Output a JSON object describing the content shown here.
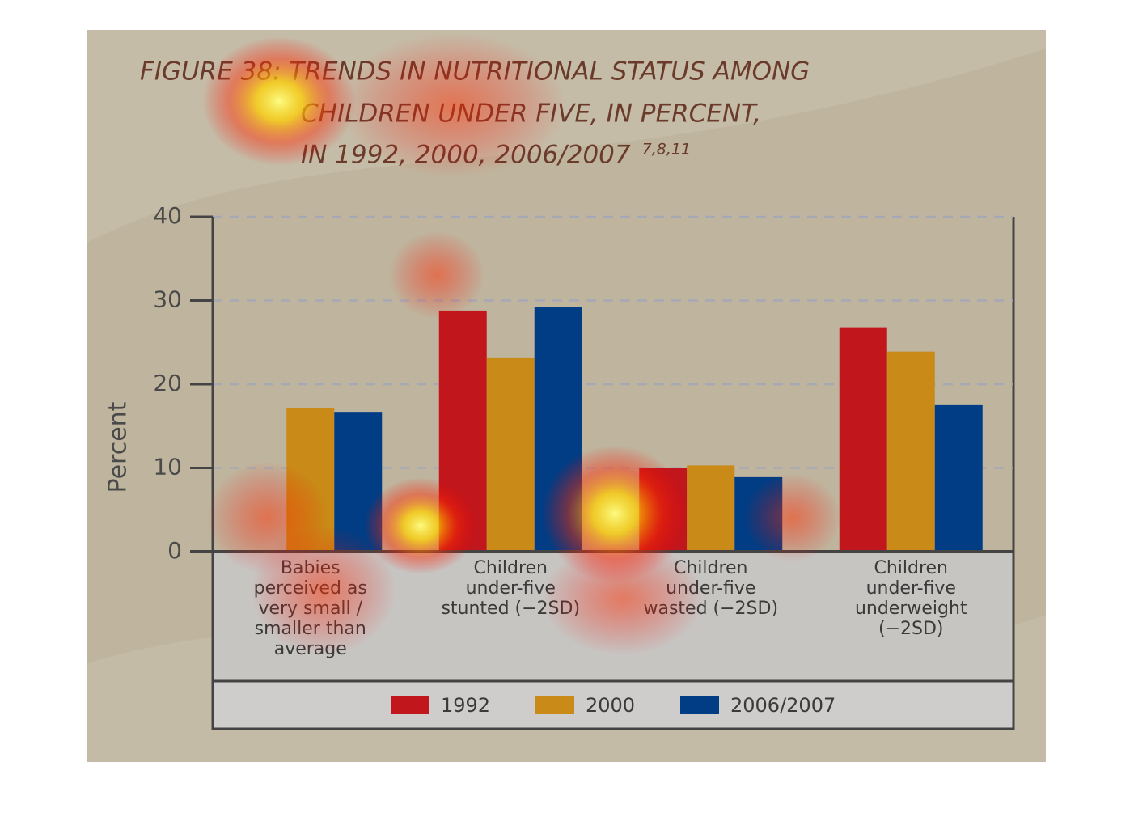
{
  "chart_data": {
    "type": "bar",
    "title": [
      "FIGURE 38: TRENDS IN NUTRITIONAL STATUS AMONG",
      "CHILDREN UNDER FIVE, IN PERCENT,",
      "IN 1992, 2000, 2006/2007"
    ],
    "title_note": "7,8,11",
    "y_label": "Percent",
    "categories": [
      "Babies perceived as very small / smaller than average",
      "Children under-five stunted (−2SD)",
      "Children under-five wasted (−2SD)",
      "Children under-five underweight (−2SD)"
    ],
    "series": [
      {
        "name": "1992",
        "color": "#c0161c",
        "values": [
          null,
          28.8,
          10.0,
          26.8
        ]
      },
      {
        "name": "2000",
        "color": "#c98a17",
        "values": [
          17.1,
          23.2,
          10.3,
          23.9
        ]
      },
      {
        "name": "2006/2007",
        "color": "#013d84",
        "values": [
          16.7,
          29.2,
          8.9,
          17.5
        ]
      }
    ],
    "ylim": [
      0,
      40
    ],
    "yticks": [
      0,
      10,
      20,
      30,
      40
    ],
    "grid": true
  }
}
